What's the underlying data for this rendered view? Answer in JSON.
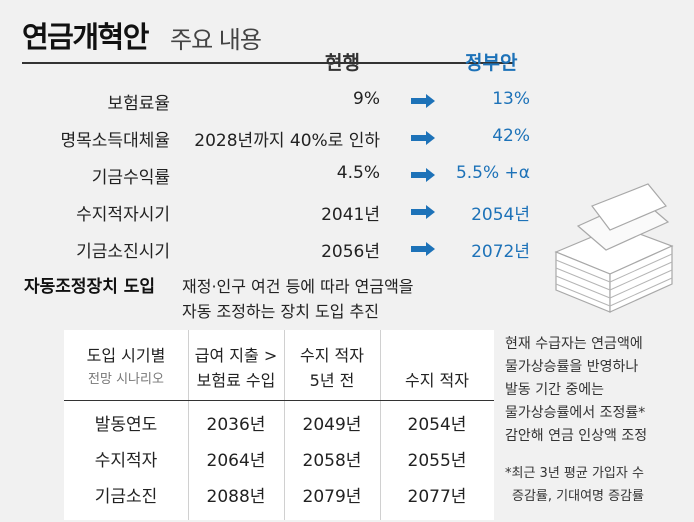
{
  "title": {
    "main": "연금개혁안",
    "sub": "주요 내용"
  },
  "headers": {
    "current": "현행",
    "government": "정부안"
  },
  "rows": [
    {
      "label": "보험료율",
      "current": "9%",
      "government": "13%"
    },
    {
      "label": "명목소득대체율",
      "current": "2028년까지 40%로 인하",
      "government": "42%"
    },
    {
      "label": "기금수익률",
      "current": "4.5%",
      "government": "5.5% +α"
    },
    {
      "label": "수지적자시기",
      "current": "2041년",
      "government": "2054년"
    },
    {
      "label": "기금소진시기",
      "current": "2056년",
      "government": "2072년"
    }
  ],
  "auto_adjust": {
    "label": "자동조정장치 도입",
    "line1": "재정·인구 여건 등에 따라 연금액을",
    "line2": "자동 조정하는 장치 도입 추진"
  },
  "scenario_table": {
    "header": {
      "col0_line1": "도입 시기별",
      "col0_line2": "전망 시나리오",
      "col1_line1": "급여 지출 >",
      "col1_line2": "보험료 수입",
      "col2_line1": "수지 적자",
      "col2_line2": "5년 전",
      "col3": "수지 적자"
    },
    "rows": [
      {
        "label": "발동연도",
        "c1": "2036년",
        "c2": "2049년",
        "c3": "2054년"
      },
      {
        "label": "수지적자",
        "c1": "2064년",
        "c2": "2058년",
        "c3": "2055년"
      },
      {
        "label": "기금소진",
        "c1": "2088년",
        "c2": "2079년",
        "c3": "2077년"
      }
    ]
  },
  "notes": {
    "lines": [
      "현재 수급자는 연금액에",
      "물가상승률을 반영하나",
      "발동 기간 중에는",
      "물가상승률에서 조정률*",
      "감안해 연금 인상액 조정"
    ],
    "footnote1": "*최근 3년 평균 가입자 수",
    "footnote2": "증감률, 기대여명 증감률"
  },
  "icons": {
    "arrow": "right-arrow-icon",
    "illustration": "money-stack-illustration"
  },
  "colors": {
    "accent": "#1d72b8",
    "arrow": "#1d72b8"
  }
}
